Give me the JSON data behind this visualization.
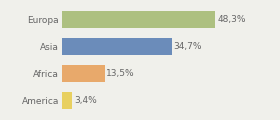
{
  "categories": [
    "Europa",
    "Asia",
    "Africa",
    "America"
  ],
  "values": [
    48.3,
    34.7,
    13.5,
    3.4
  ],
  "labels": [
    "48,3%",
    "34,7%",
    "13,5%",
    "3,4%"
  ],
  "bar_colors": [
    "#adc080",
    "#6b8cba",
    "#e8a96b",
    "#e8d060"
  ],
  "background_color": "#f0f0eb",
  "xlim": [
    0,
    58
  ],
  "bar_height": 0.65,
  "label_fontsize": 6.5,
  "category_fontsize": 6.5,
  "text_color": "#666666"
}
